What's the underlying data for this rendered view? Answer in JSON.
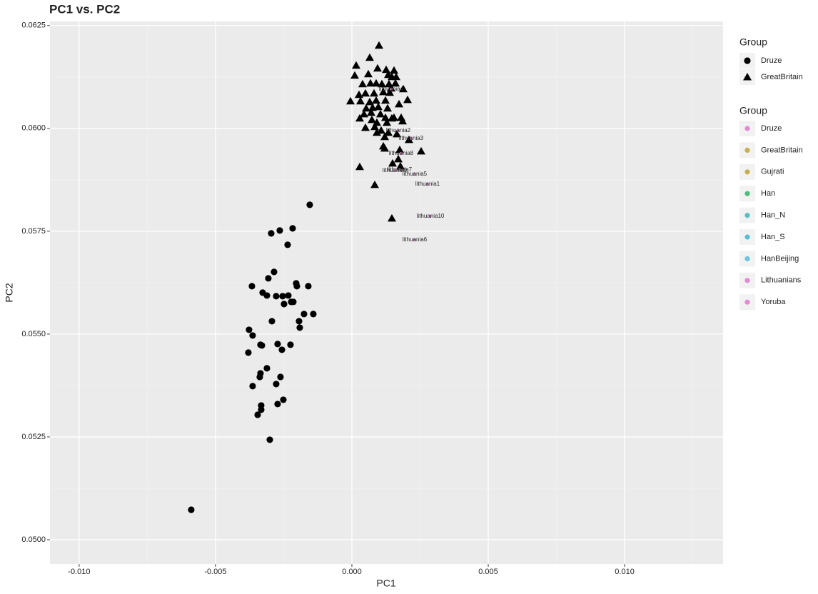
{
  "chart_data": {
    "type": "scatter",
    "title": "PC1 vs. PC2",
    "x_label": "PC1",
    "y_label": "PC2",
    "xlim": [
      -0.01107,
      0.01361
    ],
    "ylim": [
      0.04941,
      0.0626
    ],
    "xticks": [
      {
        "value": -0.01,
        "label": "-0.010"
      },
      {
        "value": -0.005,
        "label": "-0.005"
      },
      {
        "value": 0,
        "label": "0.000"
      },
      {
        "value": 0.005,
        "label": "0.005"
      },
      {
        "value": 0.01,
        "label": "0.010"
      }
    ],
    "yticks": [
      {
        "value": 0.05,
        "label": "0.0500"
      },
      0.0525,
      {
        "value": 0.055,
        "label": "0.0550"
      },
      0.0575,
      {
        "value": 0.06,
        "label": "0.0600"
      },
      0.0625
    ],
    "grid": true,
    "shape_legend_title": "Group",
    "series": [
      {
        "name": "Druze",
        "shape": "circle",
        "color": "#000000",
        "x": [
          -0.001545,
          -0.002958,
          -0.002644,
          -0.002173,
          -0.002356,
          -0.002853,
          -0.003665,
          -0.003063,
          -0.002042,
          -0.002016,
          -0.001597,
          -0.003272,
          -0.003115,
          -0.002775,
          -0.002539,
          -0.00233,
          -0.002487,
          -0.002225,
          -0.002147,
          -0.001754,
          -0.002932,
          -0.001937,
          -0.001911,
          -0.001414,
          -0.00377,
          -0.003639,
          -0.003351,
          -0.003298,
          -0.002723,
          -0.002251,
          -0.002565,
          -0.003796,
          -0.003115,
          -0.003351,
          -0.003377,
          -0.002618,
          -0.003639,
          -0.002775,
          -0.002513,
          -0.002723,
          -0.003325,
          -0.003325,
          -0.003455,
          -0.00301,
          -0.00589
        ],
        "values": [
          0.058142,
          0.057448,
          0.057517,
          0.057569,
          0.05717,
          0.05651,
          0.056163,
          0.056354,
          0.056233,
          0.056163,
          0.056163,
          0.056007,
          0.055937,
          0.05592,
          0.05592,
          0.055937,
          0.055729,
          0.055781,
          0.055781,
          0.055486,
          0.055312,
          0.055312,
          0.055156,
          0.055486,
          0.055104,
          0.054965,
          0.05474,
          0.054722,
          0.054757,
          0.05474,
          0.054618,
          0.054549,
          0.054167,
          0.054045,
          0.053958,
          0.053958,
          0.053733,
          0.053785,
          0.053403,
          0.053299,
          0.053264,
          0.05316,
          0.053038,
          0.052431,
          0.050729
        ]
      },
      {
        "name": "GreatBritain",
        "shape": "triangle",
        "color": "#000000",
        "x": [
          0.000995,
          0.000654,
          0.000157,
          0.000105,
          0.000602,
          0.000942,
          0.001257,
          0.001545,
          0.001335,
          0.001623,
          0.001466,
          0.000393,
          0.000681,
          0.00089,
          0.0011,
          0.001361,
          0.001597,
          0.00144,
          0.001885,
          0.000262,
          0.000497,
          0.000812,
          0.001152,
          0.001387,
          -5.2e-05,
          0.000314,
          0.000654,
          0.00089,
          0.00123,
          0.001728,
          0.002042,
          0.000524,
          0.000759,
          0.000969,
          0.001309,
          0.000445,
          0.000707,
          0.001047,
          0.001545,
          0.001806,
          0.000288,
          0.000733,
          0.00123,
          0.001466,
          0.001859,
          0.000916,
          0.001283,
          0.000497,
          0.000838,
          0.001073,
          0.001335,
          0.001649,
          0.002094,
          0.001204,
          0.000916,
          0.001152,
          0.001204,
          0.001754,
          0.002539,
          0.001702,
          0.001492,
          0.00178,
          0.000288,
          0.000838,
          0.001466
        ],
        "values": [
          0.062014,
          0.061719,
          0.061528,
          0.061285,
          0.061319,
          0.061458,
          0.061424,
          0.061406,
          0.061302,
          0.06125,
          0.06125,
          0.061076,
          0.061094,
          0.061094,
          0.061076,
          0.061076,
          0.061094,
          0.060972,
          0.060955,
          0.060816,
          0.060851,
          0.060851,
          0.060885,
          0.060868,
          0.06066,
          0.06066,
          0.060642,
          0.060677,
          0.060677,
          0.06059,
          0.060694,
          0.060486,
          0.060503,
          0.060521,
          0.060486,
          0.060347,
          0.060382,
          0.060347,
          0.06026,
          0.06026,
          0.060243,
          0.060208,
          0.06026,
          0.060243,
          0.060174,
          0.060139,
          0.060139,
          0.060017,
          0.060035,
          0.059948,
          0.059896,
          0.059861,
          0.059722,
          0.059792,
          0.059896,
          0.059566,
          0.059514,
          0.059479,
          0.059444,
          0.059253,
          0.059149,
          0.05908,
          0.059063,
          0.058628,
          0.057813
        ]
      }
    ],
    "point_labels": {
      "color": "#e08ccf",
      "labels": [
        "lithuania1",
        "lithuania2",
        "lithuania3",
        "lithuania4",
        "lithuania5",
        "lithuania6",
        "lithuania7",
        "lithuania8",
        "lithuania9",
        "lithuania10"
      ],
      "x": [
        0.002775,
        0.001702,
        0.002173,
        0.00144,
        0.002304,
        0.002304,
        0.001754,
        0.001806,
        0.001571,
        0.00288
      ],
      "values": [
        0.058646,
        0.059948,
        0.059757,
        0.060955,
        0.058889,
        0.057292,
        0.058993,
        0.059392,
        0.058976,
        0.057865
      ]
    },
    "color_legend": {
      "title": "Group",
      "entries": [
        {
          "name": "Druze",
          "color": "#e08ccf"
        },
        {
          "name": "GreatBritain",
          "color": "#c4b050"
        },
        {
          "name": "Gujrati",
          "color": "#c4b050"
        },
        {
          "name": "Han",
          "color": "#4cbd7a"
        },
        {
          "name": "Han_N",
          "color": "#5bbfbf"
        },
        {
          "name": "Han_S",
          "color": "#5abdd4"
        },
        {
          "name": "HanBeijing",
          "color": "#6cc4dd"
        },
        {
          "name": "Lithuanians",
          "color": "#e08ccf"
        },
        {
          "name": "Yoruba",
          "color": "#e08ccf"
        }
      ]
    }
  }
}
